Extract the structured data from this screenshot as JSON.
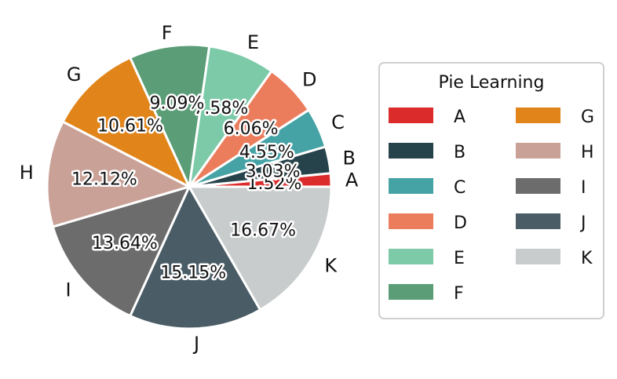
{
  "chart_data": {
    "type": "pie",
    "legend": {
      "title": "Pie Learning",
      "placement": "right"
    },
    "slices": [
      {
        "label": "A",
        "value": 1.52,
        "pct_text": "1.52%",
        "color": "#dc2b2b"
      },
      {
        "label": "B",
        "value": 3.03,
        "pct_text": "3.03%",
        "color": "#26424a"
      },
      {
        "label": "C",
        "value": 4.55,
        "pct_text": "4.55%",
        "color": "#45a2a5"
      },
      {
        "label": "D",
        "value": 6.06,
        "pct_text": "6.06%",
        "color": "#eb7d5c"
      },
      {
        "label": "E",
        "value": 7.58,
        "pct_text": "7.58%",
        "color": "#7ccaa8"
      },
      {
        "label": "F",
        "value": 9.09,
        "pct_text": "9.09%",
        "color": "#5a9d77"
      },
      {
        "label": "G",
        "value": 10.61,
        "pct_text": "10.61%",
        "color": "#e1851b"
      },
      {
        "label": "H",
        "value": 12.12,
        "pct_text": "12.12%",
        "color": "#c9a197"
      },
      {
        "label": "I",
        "value": 13.64,
        "pct_text": "13.64%",
        "color": "#6c6c6c"
      },
      {
        "label": "J",
        "value": 15.15,
        "pct_text": "15.15%",
        "color": "#4a5d66"
      },
      {
        "label": "K",
        "value": 16.67,
        "pct_text": "16.67%",
        "color": "#c8cccd"
      }
    ]
  }
}
